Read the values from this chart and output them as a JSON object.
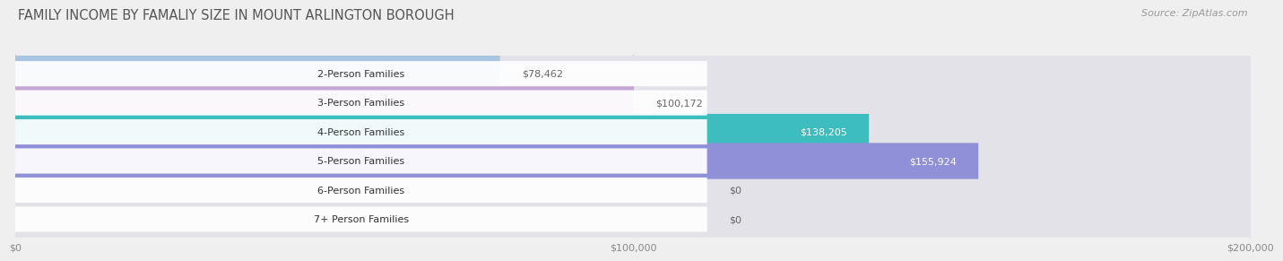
{
  "title": "FAMILY INCOME BY FAMALIY SIZE IN MOUNT ARLINGTON BOROUGH",
  "source": "Source: ZipAtlas.com",
  "categories": [
    "2-Person Families",
    "3-Person Families",
    "4-Person Families",
    "5-Person Families",
    "6-Person Families",
    "7+ Person Families"
  ],
  "values": [
    78462,
    100172,
    138205,
    155924,
    0,
    0
  ],
  "bar_colors": [
    "#a8c4e0",
    "#c4a8d4",
    "#3dbdbd",
    "#9090d8",
    "#f898a8",
    "#f8d0a0"
  ],
  "value_labels": [
    "$78,462",
    "$100,172",
    "$138,205",
    "$155,924",
    "$0",
    "$0"
  ],
  "value_label_inside": [
    false,
    false,
    true,
    true,
    false,
    false
  ],
  "value_label_colors_inside": "#ffffff",
  "value_label_colors_outside": "#666666",
  "xlim": [
    0,
    200000
  ],
  "xticks": [
    0,
    100000,
    200000
  ],
  "xtick_labels": [
    "$0",
    "$100,000",
    "$200,000"
  ],
  "bg_color": "#efefef",
  "bar_bg_color": "#e2e2e8",
  "title_fontsize": 10.5,
  "source_fontsize": 8,
  "label_fontsize": 8,
  "value_fontsize": 8
}
